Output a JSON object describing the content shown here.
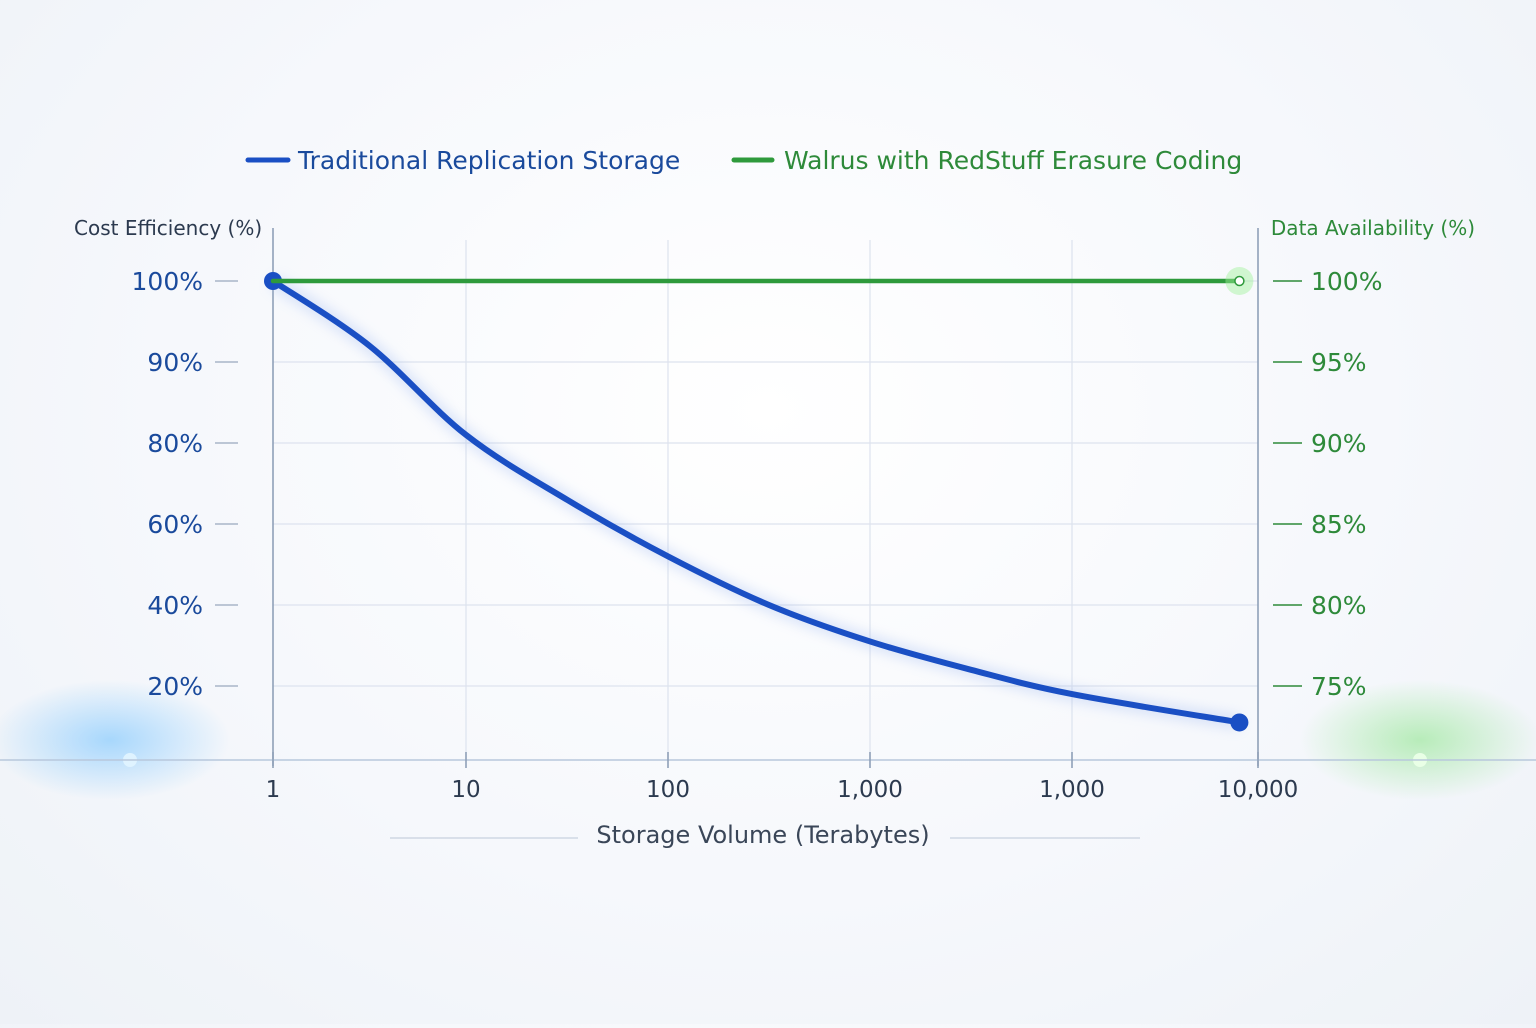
{
  "chart_data": {
    "type": "line",
    "title": "",
    "legend_position": "top-center",
    "xlabel": "Storage Volume (Terabytes)",
    "ylabel_left": "Cost Efficiency (%)",
    "ylabel_right": "Data Availability (%)",
    "x_tick_labels": [
      "1",
      "10",
      "100",
      "1,000",
      "1,000",
      "10,000"
    ],
    "y_left_tick_labels": [
      "100%",
      "90%",
      "80%",
      "60%",
      "40%",
      "20%"
    ],
    "y_right_tick_labels": [
      "100%",
      "95%",
      "90%",
      "85%",
      "80%",
      "75%"
    ],
    "grid": true,
    "series": [
      {
        "name": "Traditional Replication Storage",
        "axis": "left",
        "color": "#1a4fc4",
        "x_index": [
          0,
          0.5,
          1,
          1.5,
          2,
          2.5,
          3,
          3.5,
          4,
          4.9
        ],
        "values": [
          100,
          92,
          81,
          66,
          52,
          40,
          31,
          24,
          18,
          11
        ]
      },
      {
        "name": "Walrus with RedStuff Erasure Coding",
        "axis": "right",
        "color": "#2e9a3c",
        "x_index": [
          0,
          4.9
        ],
        "values": [
          100,
          100
        ]
      }
    ],
    "colors": {
      "left_axis_text": "#1a4a9c",
      "right_axis_text": "#2e8a3a",
      "grid": "#dde3ee",
      "axis": "#8fa0b8"
    }
  }
}
